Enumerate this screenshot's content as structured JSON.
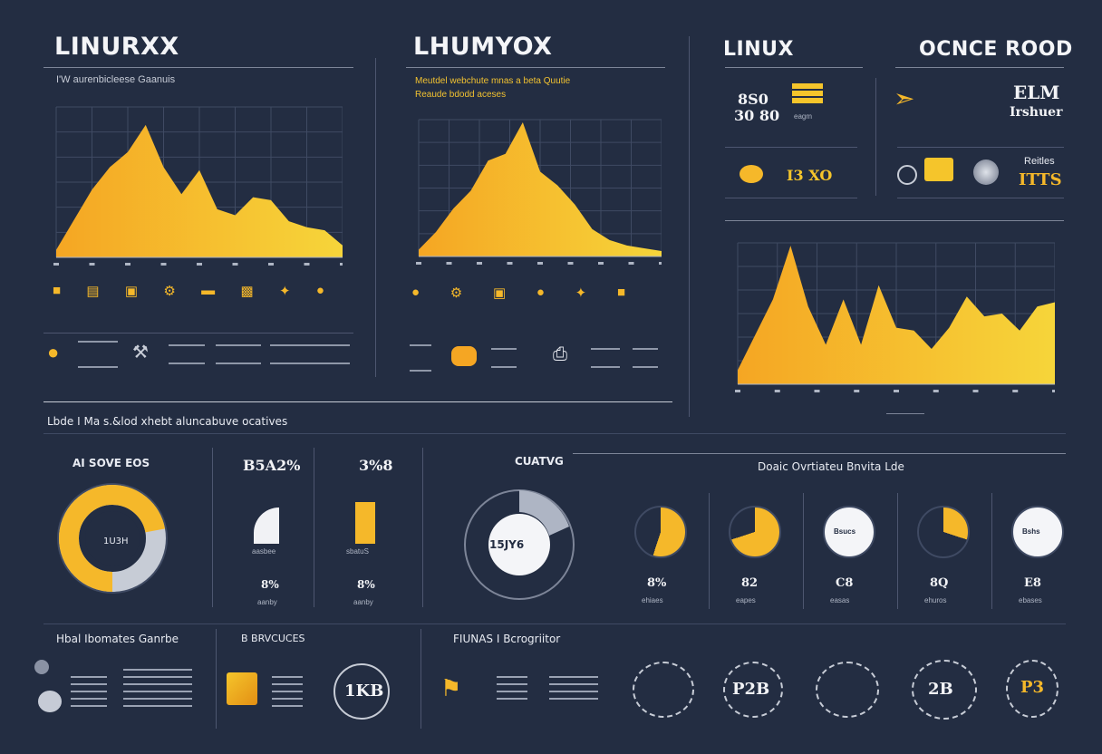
{
  "panels": {
    "p1": {
      "title": "LINURXX",
      "subtitle": "I'W aurenbicleese Gaanuis"
    },
    "p2": {
      "title": "LHUMYOX",
      "subtitle_1": "Meutdel webchute mnas a beta Quutie",
      "subtitle_2": "Reaude bdodd aceses"
    },
    "p3": {
      "title": "LINUX",
      "title_right": "OCNCE ROOD"
    },
    "p3_cards": {
      "c1_a": "8S0",
      "c1_b": "30 80",
      "c1_tag": "eagm",
      "c2_a": "ELM",
      "c2_b": "Irshuer",
      "c3_a": "I3 XO",
      "c4_a": "Reitles",
      "c4_b": "ITTS"
    }
  },
  "section2": {
    "heading_left": "Lbde I Ma s.&lod xhebt aluncabuve ocatives",
    "heading_right": "Doaic Ovrtiateu Bnvita Lde",
    "curve_label": "CUATVG",
    "donut1": {
      "title": "AI SOVE EOS",
      "center": "1U3H",
      "value": 0.72
    },
    "bar_a": {
      "top": "B5A2%",
      "label": "aasbee",
      "val": "8%",
      "unit": "aanby"
    },
    "bar_b": {
      "top": "3%8",
      "label": "sbatuS",
      "val": "8%",
      "unit": "aanby"
    },
    "gauge": {
      "center": "15JY6"
    },
    "minis": [
      {
        "center": "",
        "value": "8%",
        "unit": "ehiaes",
        "fill": 0.55
      },
      {
        "center": "",
        "value": "82",
        "unit": "eapes",
        "fill": 0.7
      },
      {
        "center": "Bsucs",
        "value": "C8",
        "unit": "easas",
        "fill": 0
      },
      {
        "center": "",
        "value": "8Q",
        "unit": "ehuros",
        "fill": 0.3
      },
      {
        "center": "Bshs",
        "value": "E8",
        "unit": "ebases",
        "fill": 0
      }
    ]
  },
  "section3": {
    "h1": "Hbal Ibomates Ganrbe",
    "h2": "B BRVCUCES",
    "h3": "FIUNAS I Bcrogriitor",
    "b1": "1KB",
    "b2": "P2B",
    "b3": "2B",
    "b4": "P3"
  },
  "colors": {
    "accent": "#f5b82a",
    "accent2": "#f3d23a",
    "bg": "#232d42"
  },
  "chart_data": [
    {
      "type": "area",
      "x": [
        0,
        1,
        2,
        3,
        4,
        5,
        6,
        7,
        8,
        9,
        10,
        11,
        12,
        13,
        14,
        15,
        16
      ],
      "y": [
        5,
        25,
        45,
        60,
        70,
        88,
        60,
        42,
        58,
        32,
        28,
        40,
        38,
        24,
        20,
        18,
        8
      ],
      "ylim": [
        0,
        100
      ]
    },
    {
      "type": "area",
      "x": [
        0,
        1,
        2,
        3,
        4,
        5,
        6,
        7,
        8,
        9,
        10,
        11,
        12,
        13,
        14
      ],
      "y": [
        5,
        18,
        35,
        48,
        70,
        75,
        98,
        62,
        52,
        38,
        20,
        12,
        8,
        6,
        4
      ],
      "ylim": [
        0,
        100
      ]
    },
    {
      "type": "area",
      "x": [
        0,
        1,
        2,
        3,
        4,
        5,
        6,
        7,
        8,
        9,
        10,
        11,
        12,
        13,
        14,
        15,
        16,
        17,
        18
      ],
      "y": [
        10,
        35,
        60,
        98,
        55,
        28,
        60,
        28,
        70,
        40,
        38,
        25,
        40,
        62,
        48,
        50,
        38,
        55,
        58
      ],
      "ylim": [
        0,
        100
      ]
    }
  ]
}
